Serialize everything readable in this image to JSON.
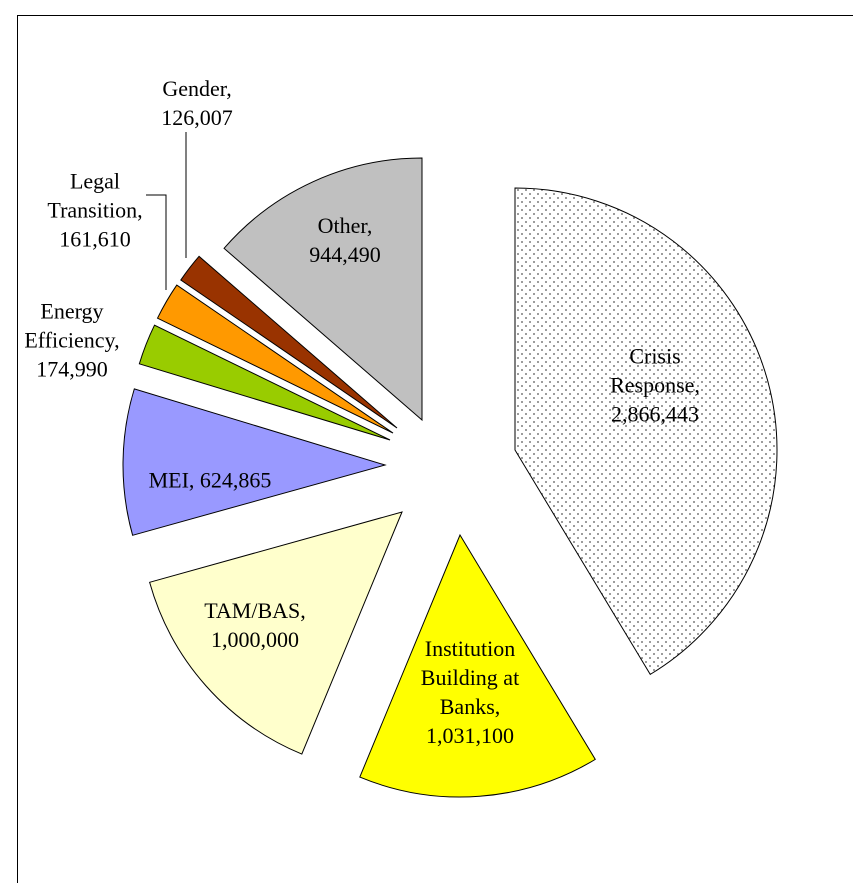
{
  "chart_data": {
    "type": "pie",
    "categories": [
      "Crisis Response",
      "Institution Building at Banks",
      "TAM/BAS",
      "MEI",
      "Energy Efficiency",
      "Legal Transition",
      "Gender",
      "Other"
    ],
    "values": [
      2866443,
      1031100,
      1000000,
      624865,
      174990,
      161610,
      126007,
      944490
    ],
    "value_labels": [
      "2,866,443",
      "1,031,100",
      "1,000,000",
      "624,865",
      "174,990",
      "161,610",
      "126,007",
      "944,490"
    ],
    "label_separator": ",",
    "colors": [
      "#ffffff",
      "#ffff00",
      "#ffffcc",
      "#9999ff",
      "#99cc00",
      "#ff9900",
      "#993300",
      "#c0c0c0"
    ]
  }
}
